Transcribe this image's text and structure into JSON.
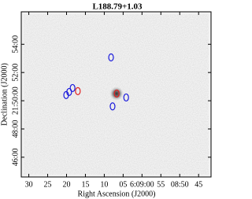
{
  "chart_data": {
    "type": "scatter",
    "title": "L188.79+1.03",
    "x_label": "Right Ascension (J2000)",
    "y_label": "Declination (J2000)",
    "xlim": [
      92,
      41.7
    ],
    "ylim": [
      44.6,
      56.3
    ],
    "xticks": [
      {
        "value": 90,
        "label": "30"
      },
      {
        "value": 85,
        "label": "25"
      },
      {
        "value": 80,
        "label": "20"
      },
      {
        "value": 75,
        "label": "15"
      },
      {
        "value": 70,
        "label": "10"
      },
      {
        "value": 65,
        "label": "05"
      },
      {
        "value": 60,
        "label": "6:09:00"
      },
      {
        "value": 55,
        "label": "55"
      },
      {
        "value": 50,
        "label": "08:50"
      },
      {
        "value": 45,
        "label": "45"
      }
    ],
    "yticks": [
      {
        "value": 46,
        "label": "46:00"
      },
      {
        "value": 48,
        "label": "48:00"
      },
      {
        "value": 50,
        "label": "21:50:00"
      },
      {
        "value": 52,
        "label": "52:00"
      },
      {
        "value": 54,
        "label": "54:00"
      }
    ],
    "series": [
      {
        "color": "#1a1adc",
        "x": [
          68.2,
          78.4,
          79.3,
          80.1,
          64.2,
          67.8
        ],
        "values": [
          53.07,
          50.9,
          50.62,
          50.4,
          50.23,
          49.6
        ]
      },
      {
        "color": "#e02020",
        "x": [
          77.0,
          66.7
        ],
        "values": [
          50.68,
          50.51
        ]
      }
    ]
  }
}
